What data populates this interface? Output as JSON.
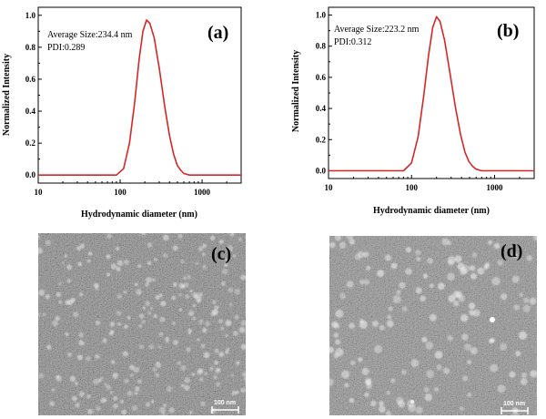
{
  "chart_data": [
    {
      "type": "line",
      "panel_label": "(a)",
      "xlabel": "Hydrodynamic diameter (nm)",
      "ylabel": "Normalized Intensity",
      "x_scale": "log",
      "xlim": [
        10,
        3000
      ],
      "ylim": [
        -0.05,
        1.05
      ],
      "x_ticks": [
        "10",
        "100",
        "1000"
      ],
      "y_ticks": [
        "0.0",
        "0.2",
        "0.4",
        "0.6",
        "0.8",
        "1.0"
      ],
      "annotations": [
        "Average Size:234.4 nm",
        "PDI:0.289"
      ],
      "series": [
        {
          "color": "#d62728",
          "x": [
            90,
            110,
            130,
            150,
            170,
            190,
            210,
            230,
            260,
            300,
            350,
            400,
            450,
            500,
            550,
            600,
            700
          ],
          "y": [
            0.0,
            0.04,
            0.2,
            0.45,
            0.72,
            0.9,
            0.97,
            0.95,
            0.86,
            0.67,
            0.43,
            0.25,
            0.13,
            0.06,
            0.03,
            0.01,
            0.0
          ]
        }
      ]
    },
    {
      "type": "line",
      "panel_label": "(b)",
      "xlabel": "Hydrodynamic diameter (nm)",
      "ylabel": "Normalized Intensity",
      "x_scale": "log",
      "xlim": [
        10,
        3000
      ],
      "ylim": [
        -0.05,
        1.05
      ],
      "x_ticks": [
        "10",
        "100",
        "1000"
      ],
      "y_ticks": [
        "0.0",
        "0.2",
        "0.4",
        "0.6",
        "0.8",
        "1.0"
      ],
      "annotations": [
        "Average Size:223.2 nm",
        "PDI:0.312"
      ],
      "series": [
        {
          "color": "#d62728",
          "x": [
            80,
            100,
            120,
            140,
            160,
            180,
            200,
            220,
            250,
            290,
            340,
            390,
            440,
            490,
            540,
            600,
            700
          ],
          "y": [
            0.0,
            0.05,
            0.22,
            0.48,
            0.74,
            0.92,
            0.99,
            0.96,
            0.84,
            0.63,
            0.4,
            0.23,
            0.12,
            0.06,
            0.03,
            0.01,
            0.0
          ]
        }
      ]
    }
  ],
  "micrographs": [
    {
      "panel_label": "(c)",
      "scale_bar": "100 nm",
      "background": "#7a7a7a"
    },
    {
      "panel_label": "(d)",
      "scale_bar": "100 nm",
      "background": "#8a8a8a"
    }
  ]
}
